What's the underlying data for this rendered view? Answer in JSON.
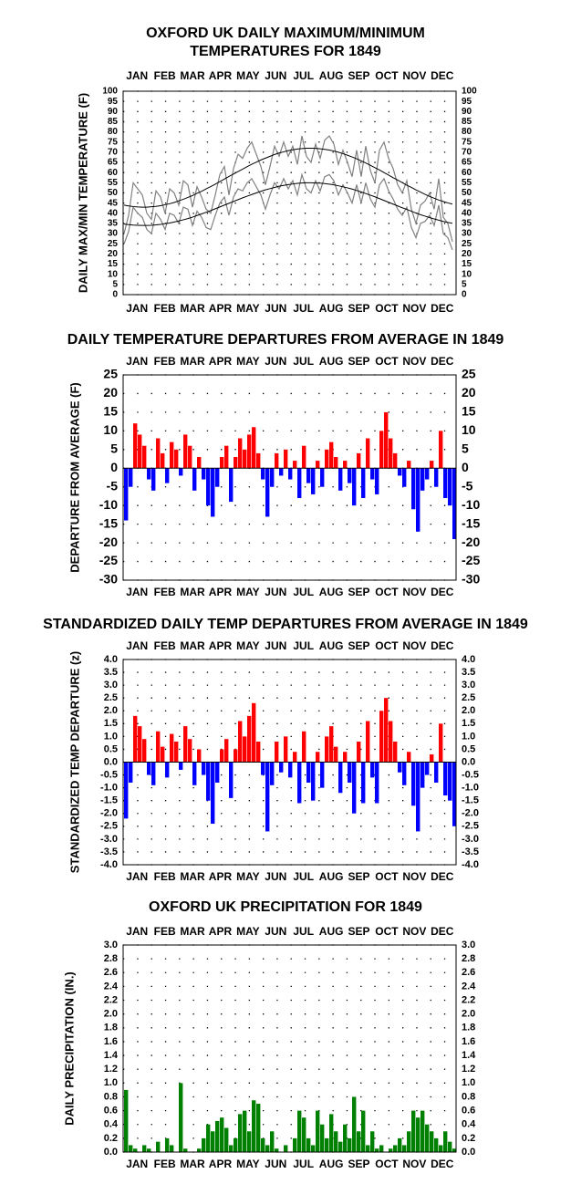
{
  "chart_data": [
    {
      "type": "line",
      "title": [
        "OXFORD UK DAILY MAXIMUM/MINIMUM",
        "TEMPERATURES FOR 1849"
      ],
      "y_label": "DAILY MAX/MIN TEMPERATURE (F)",
      "months": [
        "JAN",
        "FEB",
        "MAR",
        "APR",
        "MAY",
        "JUN",
        "JUL",
        "AUG",
        "SEP",
        "OCT",
        "NOV",
        "DEC"
      ],
      "x": [
        1,
        6,
        11,
        16,
        21,
        26,
        31,
        36,
        41,
        46,
        51,
        56,
        61,
        66,
        71,
        76,
        81,
        86,
        91,
        96,
        101,
        106,
        111,
        116,
        121,
        126,
        131,
        136,
        141,
        146,
        151,
        156,
        161,
        166,
        171,
        176,
        181,
        186,
        191,
        196,
        201,
        206,
        211,
        216,
        221,
        226,
        231,
        236,
        241,
        246,
        251,
        256,
        261,
        266,
        271,
        276,
        281,
        286,
        291,
        296,
        301,
        306,
        311,
        316,
        321,
        326,
        331,
        336,
        341,
        346,
        351,
        356,
        361
      ],
      "xlim": [
        0,
        365
      ],
      "ylim": [
        0,
        100
      ],
      "yticks": [
        0,
        5,
        10,
        15,
        20,
        25,
        30,
        35,
        40,
        45,
        50,
        55,
        60,
        65,
        70,
        75,
        80,
        85,
        90,
        95,
        100
      ],
      "grid": true,
      "series": [
        {
          "color": "#808080",
          "values": [
            30,
            39,
            55,
            52,
            49,
            40,
            37,
            51,
            48,
            40,
            52,
            50,
            44,
            56,
            54,
            43,
            53,
            48,
            42,
            40,
            49,
            59,
            63,
            49,
            62,
            69,
            67,
            72,
            75,
            69,
            63,
            54,
            63,
            73,
            68,
            75,
            68,
            73,
            64,
            78,
            68,
            65,
            74,
            67,
            76,
            78,
            74,
            64,
            71,
            65,
            58,
            71,
            58,
            73,
            61,
            55,
            71,
            75,
            67,
            62,
            54,
            50,
            56,
            42,
            35,
            44,
            46,
            50,
            42,
            57,
            38,
            35,
            26
          ]
        },
        {
          "color": "#808080",
          "values": [
            25,
            31,
            43,
            40,
            38,
            32,
            30,
            40,
            37,
            32,
            40,
            39,
            35,
            43,
            42,
            34,
            41,
            38,
            33,
            32,
            39,
            45,
            48,
            39,
            48,
            52,
            51,
            55,
            57,
            53,
            49,
            42,
            49,
            55,
            52,
            57,
            52,
            56,
            49,
            59,
            52,
            50,
            56,
            51,
            58,
            59,
            56,
            49,
            54,
            50,
            45,
            54,
            45,
            55,
            47,
            43,
            54,
            57,
            51,
            47,
            42,
            39,
            43,
            33,
            28,
            35,
            36,
            39,
            34,
            44,
            30,
            28,
            22
          ]
        },
        {
          "color": "#000000",
          "values": [
            44.0,
            43.6,
            43.3,
            43.1,
            43.0,
            43.0,
            43.2,
            43.4,
            43.7,
            44.2,
            44.7,
            45.3,
            46.1,
            46.9,
            47.8,
            48.7,
            49.8,
            50.8,
            52.0,
            53.1,
            54.3,
            55.6,
            56.8,
            58.1,
            59.3,
            60.5,
            61.7,
            62.9,
            64.1,
            65.1,
            66.2,
            67.1,
            68.0,
            68.9,
            69.6,
            70.2,
            70.8,
            71.2,
            71.6,
            71.8,
            72.0,
            72.0,
            71.9,
            71.7,
            71.4,
            71.1,
            70.6,
            70.0,
            69.3,
            68.5,
            67.7,
            66.8,
            65.8,
            64.7,
            63.6,
            62.4,
            61.3,
            60.0,
            58.8,
            57.5,
            56.3,
            55.1,
            53.8,
            52.7,
            51.5,
            50.4,
            49.3,
            48.3,
            47.4,
            46.5,
            45.8,
            45.1,
            44.5
          ]
        },
        {
          "color": "#000000",
          "values": [
            34.7,
            34.4,
            34.2,
            34.1,
            34.0,
            34.0,
            34.1,
            34.3,
            34.5,
            34.9,
            35.2,
            35.7,
            36.2,
            36.8,
            37.4,
            38.1,
            38.9,
            39.7,
            40.5,
            41.3,
            42.2,
            43.1,
            44.0,
            44.9,
            45.8,
            46.7,
            47.6,
            48.4,
            49.2,
            50.0,
            50.8,
            51.5,
            52.1,
            52.7,
            53.3,
            53.7,
            54.1,
            54.4,
            54.7,
            54.9,
            55.0,
            55.0,
            54.9,
            54.8,
            54.6,
            54.3,
            54.0,
            53.5,
            53.0,
            52.5,
            51.9,
            51.2,
            50.5,
            49.7,
            48.9,
            48.1,
            47.2,
            46.3,
            45.4,
            44.5,
            43.6,
            42.7,
            41.9,
            41.0,
            40.1,
            39.3,
            38.6,
            37.9,
            37.2,
            36.6,
            36.0,
            35.5,
            35.1
          ]
        }
      ]
    },
    {
      "type": "bar",
      "title": [
        "DAILY TEMPERATURE DEPARTURES FROM AVERAGE IN 1849"
      ],
      "y_label": "DEPARTURE FROM AVERAGE (F)",
      "months": [
        "JAN",
        "FEB",
        "MAR",
        "APR",
        "MAY",
        "JUN",
        "JUL",
        "AUG",
        "SEP",
        "OCT",
        "NOV",
        "DEC"
      ],
      "x": [
        1,
        6,
        11,
        16,
        21,
        26,
        31,
        36,
        41,
        46,
        51,
        56,
        61,
        66,
        71,
        76,
        81,
        86,
        91,
        96,
        101,
        106,
        111,
        116,
        121,
        126,
        131,
        136,
        141,
        146,
        151,
        156,
        161,
        166,
        171,
        176,
        181,
        186,
        191,
        196,
        201,
        206,
        211,
        216,
        221,
        226,
        231,
        236,
        241,
        246,
        251,
        256,
        261,
        266,
        271,
        276,
        281,
        286,
        291,
        296,
        301,
        306,
        311,
        316,
        321,
        326,
        331,
        336,
        341,
        346,
        351,
        356,
        361
      ],
      "xlim": [
        0,
        365
      ],
      "ylim": [
        -30,
        25
      ],
      "yticks": [
        -30,
        -25,
        -20,
        -15,
        -10,
        -5,
        0,
        5,
        10,
        15,
        20,
        25
      ],
      "grid": true,
      "positive_color": "#ff0000",
      "negative_color": "#0000ff",
      "values": [
        -14,
        -5,
        12,
        9,
        6,
        -3,
        -6,
        8,
        4,
        -4,
        7,
        5,
        -2,
        9,
        6,
        -6,
        3,
        -3,
        -10,
        -13,
        -5,
        3,
        6,
        -9,
        3,
        8,
        5,
        9,
        11,
        4,
        -3,
        -13,
        -5,
        4,
        -2,
        5,
        -3,
        2,
        -8,
        6,
        -4,
        -7,
        2,
        -5,
        5,
        7,
        3,
        -6,
        2,
        -4,
        -10,
        4,
        -8,
        8,
        -3,
        -7,
        10,
        15,
        8,
        4,
        -2,
        -5,
        2,
        -11,
        -17,
        -6,
        -3,
        2,
        -5,
        10,
        -8,
        -10,
        -19
      ]
    },
    {
      "type": "bar",
      "title": [
        "STANDARDIZED DAILY TEMP DEPARTURES FROM AVERAGE IN 1849"
      ],
      "y_label": "STANDARDIZED TEMP DEPARTURE (z)",
      "months": [
        "JAN",
        "FEB",
        "MAR",
        "APR",
        "MAY",
        "JUN",
        "JUL",
        "AUG",
        "SEP",
        "OCT",
        "NOV",
        "DEC"
      ],
      "x": [
        1,
        6,
        11,
        16,
        21,
        26,
        31,
        36,
        41,
        46,
        51,
        56,
        61,
        66,
        71,
        76,
        81,
        86,
        91,
        96,
        101,
        106,
        111,
        116,
        121,
        126,
        131,
        136,
        141,
        146,
        151,
        156,
        161,
        166,
        171,
        176,
        181,
        186,
        191,
        196,
        201,
        206,
        211,
        216,
        221,
        226,
        231,
        236,
        241,
        246,
        251,
        256,
        261,
        266,
        271,
        276,
        281,
        286,
        291,
        296,
        301,
        306,
        311,
        316,
        321,
        326,
        331,
        336,
        341,
        346,
        351,
        356,
        361
      ],
      "xlim": [
        0,
        365
      ],
      "ylim": [
        -4,
        4
      ],
      "yticks": [
        {
          "value": -4,
          "label": "-4.0"
        },
        -3.5,
        {
          "value": -3,
          "label": "-3.0"
        },
        -2.5,
        {
          "value": -2,
          "label": "-2.0"
        },
        -1.5,
        {
          "value": -1,
          "label": "-1.0"
        },
        -0.5,
        {
          "value": 0,
          "label": "0.0"
        },
        0.5,
        {
          "value": 1,
          "label": "1.0"
        },
        1.5,
        {
          "value": 2,
          "label": "2.0"
        },
        2.5,
        {
          "value": 3,
          "label": "3.0"
        },
        3.5,
        {
          "value": 4,
          "label": "4.0"
        }
      ],
      "grid": true,
      "positive_color": "#ff0000",
      "negative_color": "#0000ff",
      "values": [
        -2.2,
        -0.8,
        1.8,
        1.4,
        0.9,
        -0.5,
        -0.9,
        1.2,
        0.6,
        -0.6,
        1.1,
        0.8,
        -0.3,
        1.4,
        0.9,
        -0.9,
        0.5,
        -0.5,
        -1.5,
        -2.4,
        -0.8,
        0.5,
        0.9,
        -1.4,
        0.5,
        1.6,
        1.0,
        1.8,
        2.3,
        0.8,
        -0.5,
        -2.7,
        -0.9,
        0.8,
        -0.4,
        1.0,
        -0.6,
        0.4,
        -1.6,
        1.2,
        -0.8,
        -1.5,
        0.4,
        -1.0,
        1.0,
        1.4,
        0.6,
        -1.2,
        0.4,
        -0.8,
        -2.0,
        0.8,
        -1.6,
        1.6,
        -0.6,
        -1.6,
        2.0,
        2.5,
        1.6,
        0.8,
        -0.4,
        -0.9,
        0.4,
        -1.7,
        -2.7,
        -1.0,
        -0.5,
        0.3,
        -0.8,
        1.5,
        -1.3,
        -1.5,
        -2.5
      ]
    },
    {
      "type": "bar",
      "title": [
        "OXFORD UK PRECIPITATION FOR 1849"
      ],
      "y_label": "DAILY PRECIPITATION (IN.)",
      "months": [
        "JAN",
        "FEB",
        "MAR",
        "APR",
        "MAY",
        "JUN",
        "JUL",
        "AUG",
        "SEP",
        "OCT",
        "NOV",
        "DEC"
      ],
      "x": [
        1,
        6,
        11,
        16,
        21,
        26,
        31,
        36,
        41,
        46,
        51,
        56,
        61,
        66,
        71,
        76,
        81,
        86,
        91,
        96,
        101,
        106,
        111,
        116,
        121,
        126,
        131,
        136,
        141,
        146,
        151,
        156,
        161,
        166,
        171,
        176,
        181,
        186,
        191,
        196,
        201,
        206,
        211,
        216,
        221,
        226,
        231,
        236,
        241,
        246,
        251,
        256,
        261,
        266,
        271,
        276,
        281,
        286,
        291,
        296,
        301,
        306,
        311,
        316,
        321,
        326,
        331,
        336,
        341,
        346,
        351,
        356,
        361
      ],
      "xlim": [
        0,
        365
      ],
      "ylim": [
        0,
        3
      ],
      "yticks": [
        {
          "value": 0,
          "label": "0.0"
        },
        0.2,
        0.4,
        0.6,
        0.8,
        {
          "value": 1,
          "label": "1.0"
        },
        1.2,
        1.4,
        1.6,
        1.8,
        {
          "value": 2,
          "label": "2.0"
        },
        2.2,
        2.4,
        2.6,
        2.8,
        {
          "value": 3,
          "label": "3.0"
        }
      ],
      "grid": true,
      "color": "#008000",
      "values": [
        0.9,
        0.1,
        0.05,
        0,
        0.1,
        0.05,
        0,
        0.15,
        0,
        0.2,
        0.1,
        0,
        1.0,
        0.05,
        0,
        0,
        0.05,
        0.2,
        0.4,
        0.3,
        0.45,
        0.5,
        0.35,
        0.1,
        0.2,
        0.55,
        0.6,
        0.3,
        0.75,
        0.7,
        0.2,
        0.1,
        0.3,
        0.05,
        0,
        0.1,
        0,
        0.2,
        0.6,
        0.5,
        0.2,
        0.1,
        0.6,
        0.4,
        0.2,
        0.55,
        0.3,
        0.15,
        0.4,
        0.2,
        0.8,
        0.3,
        0.6,
        0.1,
        0.3,
        0.05,
        0.1,
        0,
        0.05,
        0.1,
        0.2,
        0.1,
        0.3,
        0.6,
        0.5,
        0.6,
        0.4,
        0.3,
        0.2,
        0.1,
        0.3,
        0.15,
        0.05
      ]
    }
  ]
}
